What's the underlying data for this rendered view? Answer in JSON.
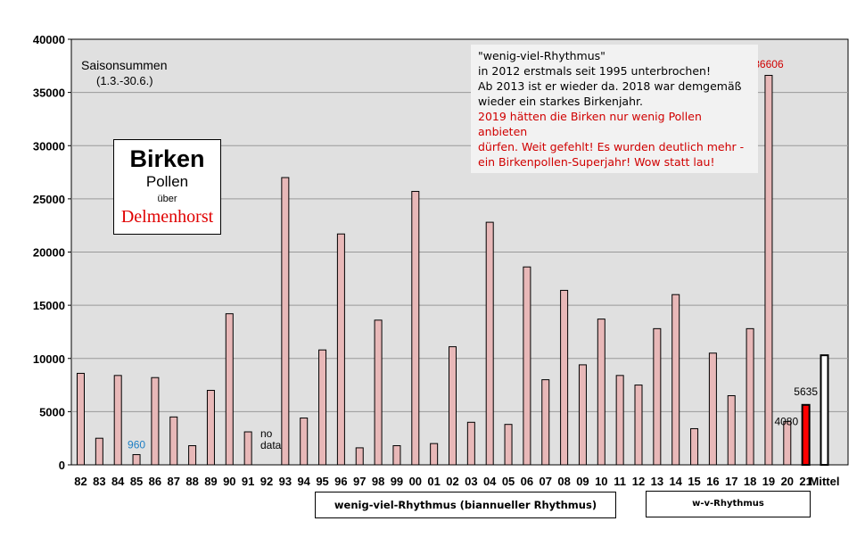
{
  "chart_data": {
    "type": "bar",
    "categories": [
      "82",
      "83",
      "84",
      "85",
      "86",
      "87",
      "88",
      "89",
      "90",
      "91",
      "92",
      "93",
      "94",
      "95",
      "96",
      "97",
      "98",
      "99",
      "00",
      "01",
      "02",
      "03",
      "04",
      "05",
      "06",
      "07",
      "08",
      "09",
      "10",
      "11",
      "12",
      "13",
      "14",
      "15",
      "16",
      "17",
      "18",
      "19",
      "20",
      "21",
      "Mittel"
    ],
    "values": [
      8600,
      2500,
      8400,
      960,
      8200,
      4500,
      1800,
      7000,
      14200,
      3100,
      null,
      27000,
      4400,
      10800,
      21700,
      1600,
      13600,
      1800,
      25700,
      2000,
      11100,
      4000,
      22800,
      3800,
      18600,
      8000,
      16400,
      9400,
      13700,
      8400,
      7500,
      12800,
      16000,
      3400,
      10500,
      6500,
      12800,
      36606,
      4080,
      5635,
      10300
    ],
    "ylim": [
      0,
      40000
    ],
    "yticks": [
      "0",
      "5000",
      "10000",
      "15000",
      "20000",
      "25000",
      "30000",
      "35000",
      "40000"
    ],
    "grid": true,
    "highlight": {
      "21": "#ff0000"
    },
    "bar_color": "#e8b8b8",
    "data_labels": {
      "85": "960",
      "19": "36606",
      "20": "4080",
      "21": "5635"
    },
    "annotations": {
      "no_data": [
        "no",
        "data"
      ],
      "season_title": "Saisonsummen",
      "season_range": "(1.3.-30.6.)"
    }
  },
  "title_box": {
    "line1": "Birken",
    "line2": "Pollen",
    "line3": "über",
    "line4": "Delmenhorst"
  },
  "note": {
    "l1": "\"wenig-viel-Rhythmus\"",
    "l2": "in 2012  erstmals seit 1995  unterbrochen!",
    "l3": "Ab 2013  ist er wieder da. 2018 war demgemäß",
    "l4": "wieder ein starkes Birkenjahr.",
    "l5": "2019  hätten die Birken nur wenig Pollen anbieten",
    "l6": "dürfen. Weit gefehlt! Es wurden deutlich mehr -",
    "l7": "ein Birkenpollen-Superjahr! Wow statt lau!"
  },
  "rhythm_labels": {
    "long": "wenig-viel-Rhythmus (biannueller Rhythmus)",
    "short": "w-v-Rhythmus"
  }
}
